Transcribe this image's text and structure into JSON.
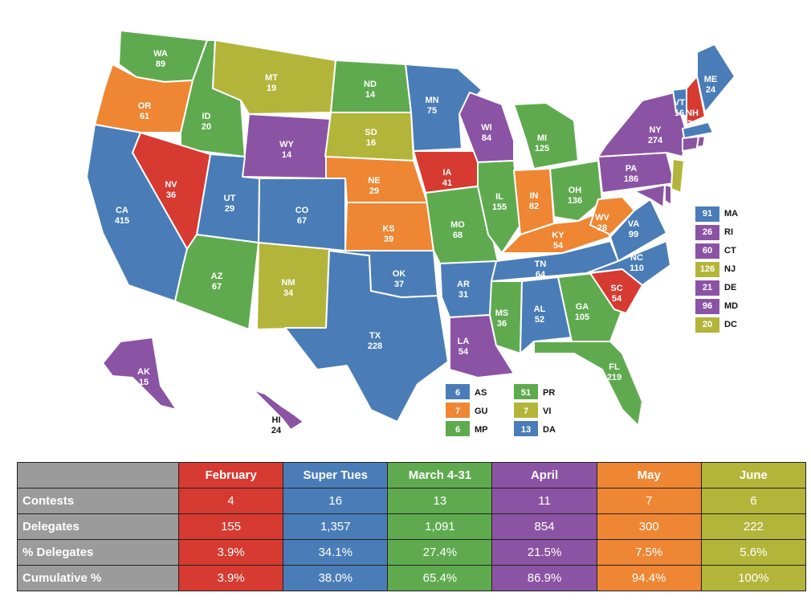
{
  "colors": {
    "February": "#d63a31",
    "Super Tues": "#4a7db7",
    "March 4-31": "#5faa4f",
    "April": "#8b53a4",
    "May": "#ee8633",
    "June": "#b3b53a",
    "header_gray": "#9b9b9b"
  },
  "states": {
    "WA": "89",
    "OR": "61",
    "ID": "20",
    "MT": "19",
    "WY": "14",
    "ND": "14",
    "SD": "16",
    "NE": "29",
    "KS": "39",
    "OK": "37",
    "TX": "228",
    "NM": "34",
    "CO": "67",
    "UT": "29",
    "AZ": "67",
    "NV": "36",
    "CA": "415",
    "MN": "75",
    "IA": "41",
    "MO": "68",
    "AR": "31",
    "LA": "54",
    "WI": "84",
    "IL": "155",
    "MI": "125",
    "IN": "82",
    "OH": "136",
    "KY": "54",
    "TN": "64",
    "MS": "36",
    "AL": "52",
    "GA": "105",
    "FL": "219",
    "SC": "54",
    "NC": "110",
    "VA": "99",
    "WV": "28",
    "PA": "186",
    "NY": "274",
    "VT": "16",
    "NH": "24",
    "ME": "24",
    "AK": "15",
    "HI": "24"
  },
  "side_legend": [
    {
      "value": "91",
      "code": "MA",
      "month": "Super Tues"
    },
    {
      "value": "26",
      "code": "RI",
      "month": "April"
    },
    {
      "value": "60",
      "code": "CT",
      "month": "April"
    },
    {
      "value": "126",
      "code": "NJ",
      "month": "June"
    },
    {
      "value": "21",
      "code": "DE",
      "month": "April"
    },
    {
      "value": "96",
      "code": "MD",
      "month": "April"
    },
    {
      "value": "20",
      "code": "DC",
      "month": "June"
    }
  ],
  "territories": [
    {
      "value": "6",
      "code": "AS",
      "month": "Super Tues"
    },
    {
      "value": "7",
      "code": "GU",
      "month": "May"
    },
    {
      "value": "6",
      "code": "MP",
      "month": "March 4-31"
    },
    {
      "value": "51",
      "code": "PR",
      "month": "March 4-31"
    },
    {
      "value": "7",
      "code": "VI",
      "month": "June"
    },
    {
      "value": "13",
      "code": "DA",
      "month": "Super Tues"
    }
  ],
  "table": {
    "columns": [
      "February",
      "Super Tues",
      "March 4-31",
      "April",
      "May",
      "June"
    ],
    "rows": [
      {
        "label": "Contests",
        "values": [
          "4",
          "16",
          "13",
          "11",
          "7",
          "6"
        ]
      },
      {
        "label": "Delegates",
        "values": [
          "155",
          "1,357",
          "1,091",
          "854",
          "300",
          "222"
        ]
      },
      {
        "label": "% Delegates",
        "values": [
          "3.9%",
          "34.1%",
          "27.4%",
          "21.5%",
          "7.5%",
          "5.6%"
        ]
      },
      {
        "label": "Cumulative %",
        "values": [
          "3.9%",
          "38.0%",
          "65.4%",
          "86.9%",
          "94.4%",
          "100%"
        ]
      }
    ]
  }
}
